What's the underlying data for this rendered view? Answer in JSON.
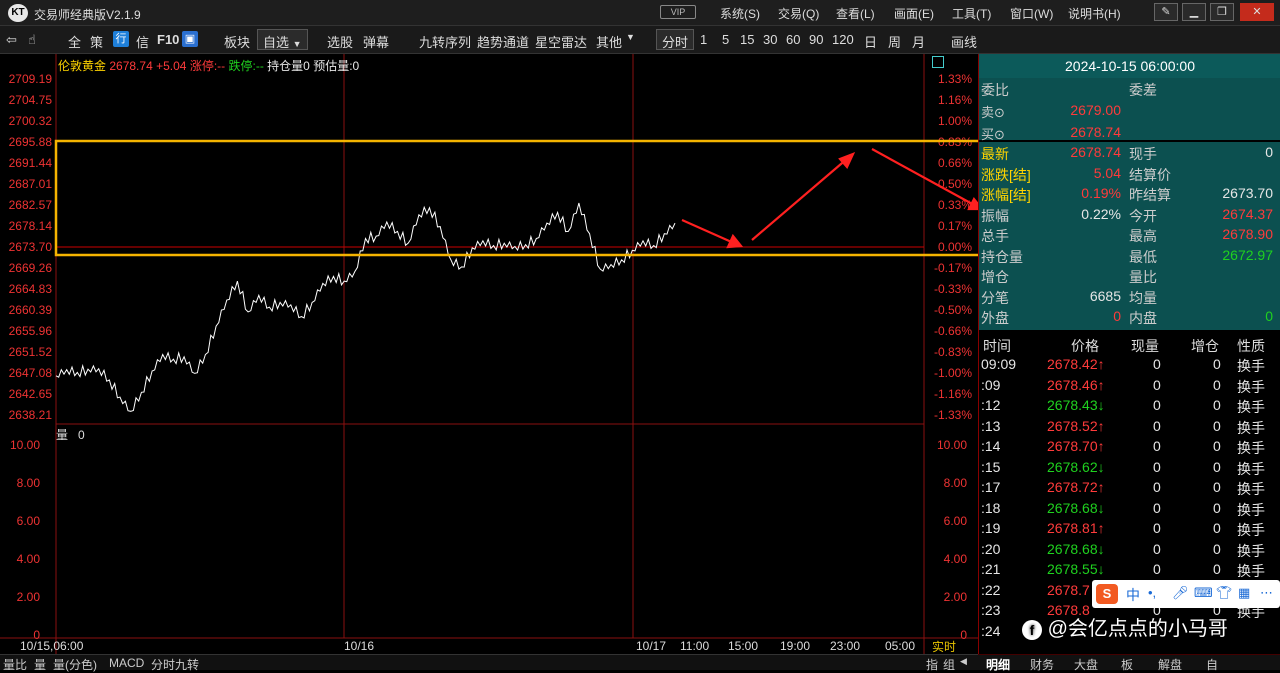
{
  "window": {
    "title": "交易师经典版V2.1.9",
    "vip": "VIP",
    "menus": [
      "系统(S)",
      "交易(Q)",
      "查看(L)",
      "画面(E)",
      "工具(T)",
      "窗口(W)",
      "说明书(H)"
    ]
  },
  "toolbar": {
    "items": [
      "全",
      "策",
      "行",
      "信",
      "F10",
      "板块",
      "自选",
      "选股",
      "弹幕",
      "九转序列",
      "趋势通道",
      "星空雷达",
      "其他",
      "分时",
      "1",
      "5",
      "15",
      "30",
      "60",
      "90",
      "120",
      "日",
      "周",
      "月",
      "画线"
    ]
  },
  "chart": {
    "header": {
      "name": "伦敦黄金",
      "price": "2678.74",
      "change": "+5.04",
      "limit_up": "涨停:--",
      "limit_down": "跌停:--",
      "open_interest": "持仓量0",
      "estimate": "预估量:0"
    },
    "price_ticks": [
      "2709.19",
      "2704.75",
      "2700.32",
      "2695.88",
      "2691.44",
      "2687.01",
      "2682.57",
      "2678.14",
      "2673.70",
      "2669.26",
      "2664.83",
      "2660.39",
      "2655.96",
      "2651.52",
      "2647.08",
      "2642.65",
      "2638.21"
    ],
    "pct_ticks": [
      "1.33%",
      "1.16%",
      "1.00%",
      "0.83%",
      "0.66%",
      "0.50%",
      "0.33%",
      "0.17%",
      "0.00%",
      "-0.17%",
      "-0.33%",
      "-0.50%",
      "-0.66%",
      "-0.83%",
      "-1.00%",
      "-1.16%",
      "-1.33%"
    ],
    "volume_label": "量",
    "volume_value": "0",
    "volume_ticks": [
      "10.00",
      "8.00",
      "6.00",
      "4.00",
      "2.00",
      "0"
    ],
    "x_labels": [
      "10/15,06:00",
      "10/16",
      "10/17",
      "11:00",
      "15:00",
      "19:00",
      "23:00",
      "05:00"
    ],
    "realtime": "实时"
  },
  "chart_data": {
    "type": "line",
    "title": "伦敦黄金",
    "x": [
      0,
      4,
      8,
      12,
      16,
      20,
      24,
      28,
      32,
      36,
      40,
      44,
      48,
      52,
      56,
      60,
      64,
      68,
      72,
      76,
      80,
      84,
      88,
      92,
      96,
      100,
      104,
      108,
      112,
      116,
      120,
      124,
      128,
      132,
      136,
      140,
      144,
      148,
      152,
      156,
      160,
      164,
      168,
      172,
      176,
      180,
      184,
      188,
      192,
      196,
      200,
      204,
      208,
      212,
      216,
      220,
      224,
      228,
      232
    ],
    "values": [
      2646.5,
      2647.8,
      2647.2,
      2647.9,
      2648.0,
      2645.6,
      2642.0,
      2639.0,
      2643.0,
      2647.5,
      2651.0,
      2650.0,
      2650.5,
      2647.0,
      2651.0,
      2657.0,
      2662.5,
      2666.5,
      2660.0,
      2663.5,
      2661.0,
      2662.0,
      2661.5,
      2659.0,
      2662.0,
      2666.0,
      2667.5,
      2666.5,
      2668.5,
      2675.5,
      2676.0,
      2679.0,
      2677.0,
      2674.5,
      2680.5,
      2682.0,
      2678.0,
      2671.0,
      2669.5,
      2673.5,
      2675.0,
      2674.0,
      2674.5,
      2673.8,
      2674.2,
      2675.5,
      2678.74,
      2681.0,
      2677.0,
      2683.0,
      2676.5,
      2669.0,
      2670.0,
      2671.0,
      2673.0,
      2675.0,
      2674.0,
      2676.5,
      2678.74
    ],
    "ylim": [
      2638.21,
      2709.19
    ],
    "base": 2673.7,
    "volume_ylim": [
      0,
      10
    ]
  },
  "panel": {
    "datetime": "2024-10-15 06:00:00",
    "weibi": "委比",
    "weicha": "委差",
    "sell_label": "卖⊙",
    "sell_price": "2679.00",
    "buy_label": "买⊙",
    "buy_price": "2678.74",
    "left": [
      {
        "label": "最新",
        "value": "2678.74",
        "color": "red"
      },
      {
        "label": "涨跌[结]",
        "value": "5.04",
        "color": "red"
      },
      {
        "label": "涨幅[结]",
        "value": "0.19%",
        "color": "red"
      },
      {
        "label": "振幅",
        "value": "0.22%",
        "color": "wht"
      },
      {
        "label": "总手",
        "value": "",
        "color": "wht"
      },
      {
        "label": "持仓量",
        "value": "",
        "color": "wht"
      },
      {
        "label": "增仓",
        "value": "",
        "color": "wht"
      },
      {
        "label": "分笔",
        "value": "6685",
        "color": "wht"
      },
      {
        "label": "外盘",
        "value": "0",
        "color": "red"
      }
    ],
    "right": [
      {
        "label": "现手",
        "value": "0",
        "color": "wht"
      },
      {
        "label": "结算价",
        "value": "",
        "color": "wht"
      },
      {
        "label": "昨结算",
        "value": "2673.70",
        "color": "wht"
      },
      {
        "label": "今开",
        "value": "2674.37",
        "color": "red"
      },
      {
        "label": "最高",
        "value": "2678.90",
        "color": "red"
      },
      {
        "label": "最低",
        "value": "2672.97",
        "color": "grn"
      },
      {
        "label": "量比",
        "value": "",
        "color": "wht"
      },
      {
        "label": "均量",
        "value": "",
        "color": "wht"
      },
      {
        "label": "内盘",
        "value": "0",
        "color": "grn"
      }
    ],
    "trade_header": [
      "时间",
      "价格",
      "现量",
      "增仓",
      "性质"
    ],
    "trades": [
      {
        "time": "09:09",
        "price": "2678.42↑",
        "vol": "0",
        "oi": "0",
        "type": "换手",
        "dir": "red"
      },
      {
        "time": ":09",
        "price": "2678.46↑",
        "vol": "0",
        "oi": "0",
        "type": "换手",
        "dir": "red"
      },
      {
        "time": ":12",
        "price": "2678.43↓",
        "vol": "0",
        "oi": "0",
        "type": "换手",
        "dir": "grn"
      },
      {
        "time": ":13",
        "price": "2678.52↑",
        "vol": "0",
        "oi": "0",
        "type": "换手",
        "dir": "red"
      },
      {
        "time": ":14",
        "price": "2678.70↑",
        "vol": "0",
        "oi": "0",
        "type": "换手",
        "dir": "red"
      },
      {
        "time": ":15",
        "price": "2678.62↓",
        "vol": "0",
        "oi": "0",
        "type": "换手",
        "dir": "grn"
      },
      {
        "time": ":17",
        "price": "2678.72↑",
        "vol": "0",
        "oi": "0",
        "type": "换手",
        "dir": "red"
      },
      {
        "time": ":18",
        "price": "2678.68↓",
        "vol": "0",
        "oi": "0",
        "type": "换手",
        "dir": "grn"
      },
      {
        "time": ":19",
        "price": "2678.81↑",
        "vol": "0",
        "oi": "0",
        "type": "换手",
        "dir": "red"
      },
      {
        "time": ":20",
        "price": "2678.68↓",
        "vol": "0",
        "oi": "0",
        "type": "换手",
        "dir": "grn"
      },
      {
        "time": ":21",
        "price": "2678.55↓",
        "vol": "0",
        "oi": "0",
        "type": "换手",
        "dir": "grn"
      },
      {
        "time": ":22",
        "price": "2678.7",
        "vol": "0",
        "oi": "0",
        "type": "换手",
        "dir": "red"
      },
      {
        "time": ":23",
        "price": "2678.8",
        "vol": "0",
        "oi": "0",
        "type": "换手",
        "dir": "red"
      },
      {
        "time": ":24",
        "price": "",
        "vol": "",
        "oi": "",
        "type": "",
        "dir": "red"
      }
    ],
    "tabs": [
      "明细",
      "财务",
      "大盘",
      "板",
      "解盘",
      "自"
    ]
  },
  "bottom_tabs": [
    "量比",
    "量",
    "量(分色)",
    "MACD",
    "分时九转"
  ],
  "bottom_right": [
    "指",
    "组"
  ],
  "watermark": "@会亿点点的小马哥",
  "ime": "中"
}
